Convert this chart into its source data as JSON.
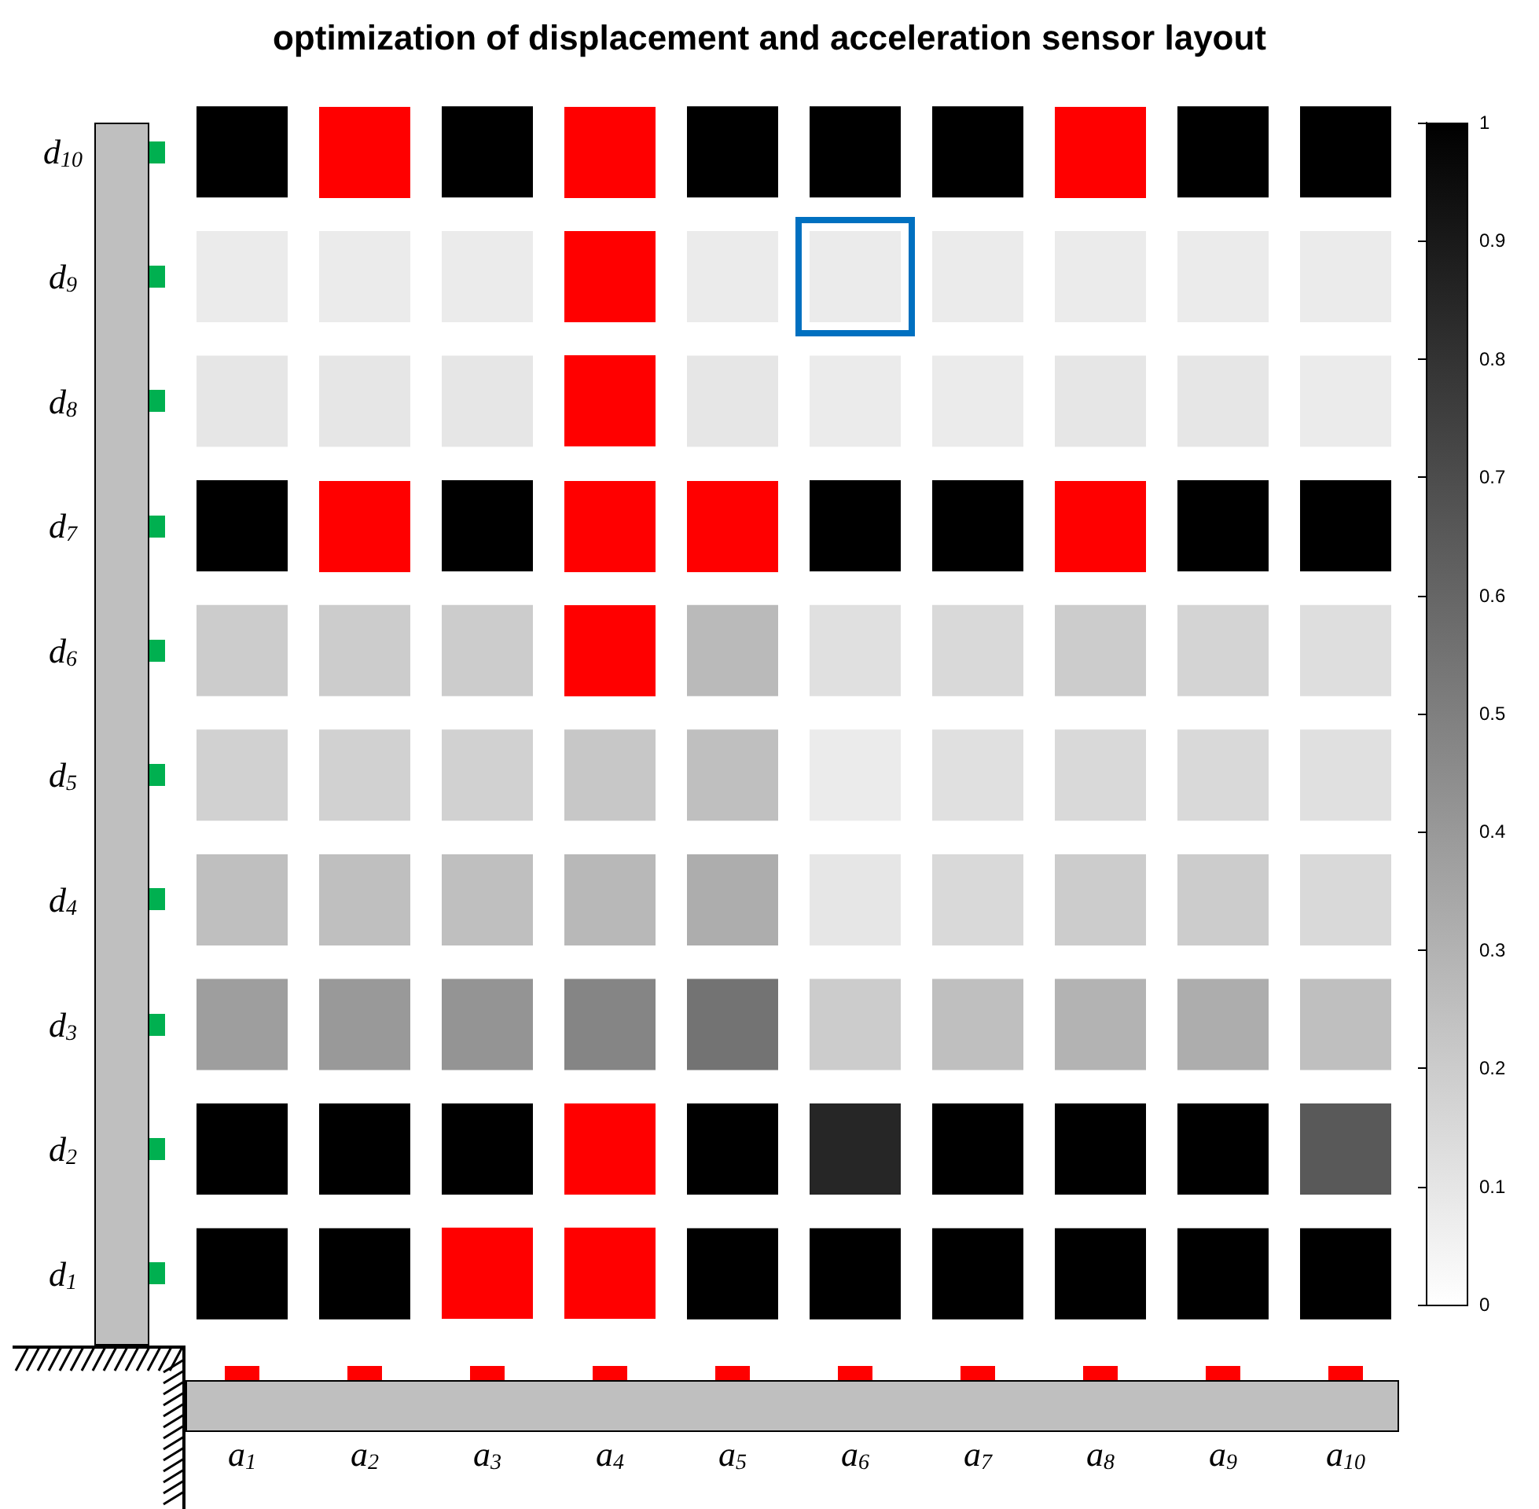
{
  "chart_data": {
    "type": "heatmap",
    "title": "optimization of displacement and acceleration sensor layout",
    "categories": [
      "a$_{1}$",
      "a$_{2}$",
      "a$_{3}$",
      "a$_{4}$",
      "a$_{5}$",
      "a$_{6}$",
      "a$_{7}$",
      "a$_{8}$",
      "a$_{9}$",
      "a$_{10}$"
    ],
    "y_categories": [
      "d$_{10}$",
      "d$_{9}$",
      "d$_{8}$",
      "d$_{7}$",
      "d$_{6}$",
      "d$_{5}$",
      "d$_{4}$",
      "d$_{3}$",
      "d$_{2}$",
      "d$_{1}$"
    ],
    "cells": [
      [
        1,
        null,
        1,
        null,
        1,
        1,
        1,
        null,
        1,
        1
      ],
      [
        0.08,
        0.08,
        0.08,
        null,
        0.08,
        0.08,
        0.08,
        0.08,
        0.08,
        0.08
      ],
      [
        0.1,
        0.1,
        0.1,
        null,
        0.1,
        0.08,
        0.08,
        0.1,
        0.1,
        0.08
      ],
      [
        1,
        null,
        1,
        null,
        null,
        1,
        1,
        null,
        1,
        1
      ],
      [
        0.2,
        0.2,
        0.2,
        null,
        0.27,
        0.12,
        0.15,
        0.2,
        0.17,
        0.13
      ],
      [
        0.18,
        0.18,
        0.18,
        0.22,
        0.25,
        0.08,
        0.12,
        0.15,
        0.15,
        0.12
      ],
      [
        0.25,
        0.25,
        0.25,
        0.28,
        0.32,
        0.1,
        0.15,
        0.2,
        0.2,
        0.15
      ],
      [
        0.38,
        0.4,
        0.42,
        0.48,
        0.55,
        0.2,
        0.25,
        0.3,
        0.32,
        0.25
      ],
      [
        1,
        1,
        1,
        null,
        1,
        0.85,
        1,
        1,
        1,
        0.65
      ],
      [
        1,
        1,
        null,
        null,
        1,
        1,
        1,
        1,
        1,
        1
      ]
    ],
    "colors": [
      [
        null,
        "#ff0000",
        null,
        "#ff0000",
        null,
        null,
        null,
        "#ff0000",
        null,
        null
      ],
      [
        null,
        null,
        null,
        "#ff0000",
        null,
        null,
        null,
        null,
        null,
        null
      ],
      [
        null,
        null,
        null,
        "#ff0000",
        null,
        null,
        null,
        null,
        null,
        null
      ],
      [
        null,
        "#ff0000",
        null,
        "#ff0000",
        "#ff0000",
        null,
        null,
        "#ff0000",
        null,
        null
      ],
      [
        null,
        null,
        null,
        "#ff0000",
        null,
        null,
        null,
        null,
        null,
        null
      ],
      [
        null,
        null,
        null,
        null,
        null,
        null,
        null,
        null,
        null,
        null
      ],
      [
        null,
        null,
        null,
        null,
        null,
        null,
        null,
        null,
        null,
        null
      ],
      [
        null,
        null,
        null,
        null,
        null,
        null,
        null,
        null,
        null,
        null
      ],
      [
        null,
        null,
        null,
        "#ff0000",
        null,
        null,
        null,
        null,
        null,
        null
      ],
      [
        null,
        null,
        "#ff0000",
        "#ff0000",
        null,
        null,
        null,
        null,
        null,
        null
      ]
    ],
    "clim": [
      0,
      1
    ],
    "cticks": [
      0,
      0.1,
      0.2,
      0.3,
      0.4,
      0.5,
      0.6,
      0.7,
      0.8,
      0.9,
      1
    ]
  }
}
